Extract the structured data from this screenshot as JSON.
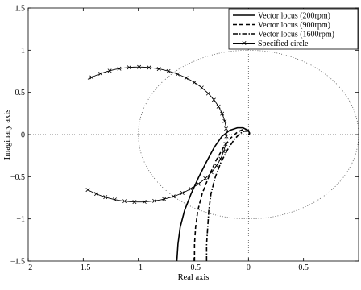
{
  "chart_data": {
    "type": "line",
    "title": "",
    "xlabel": "Real axis",
    "ylabel": "Imaginary axis",
    "xlim": [
      -2,
      1
    ],
    "ylim": [
      -1.5,
      1.5
    ],
    "xticks": [
      -2,
      -1.5,
      -1,
      -0.5,
      0,
      0.5
    ],
    "xtick_labels": [
      "−2",
      "−1.5",
      "−1",
      "−0.5",
      "0",
      "0.5"
    ],
    "yticks": [
      -1.5,
      -1,
      -0.5,
      0,
      0.5,
      1,
      1.5
    ],
    "ytick_labels": [
      "−1.5",
      "−1",
      "−0.5",
      "0",
      "0.5",
      "1",
      "1.5"
    ],
    "grid": false,
    "legend_position": "top-right",
    "reference_lines": {
      "axes_dotted": true,
      "unit_circle": {
        "center": [
          0,
          0
        ],
        "radius": 1,
        "style": "dotted"
      }
    },
    "series": [
      {
        "name": "Vector locus (200rpm)",
        "style": "solid",
        "x": [
          -0.65,
          -0.64,
          -0.62,
          -0.58,
          -0.52,
          -0.45,
          -0.38,
          -0.31,
          -0.24,
          -0.17,
          -0.1,
          -0.05,
          -0.02,
          0.0,
          0.01,
          0.01,
          0.0
        ],
        "y": [
          -1.5,
          -1.3,
          -1.1,
          -0.9,
          -0.7,
          -0.5,
          -0.32,
          -0.15,
          -0.02,
          0.05,
          0.08,
          0.08,
          0.06,
          0.04,
          0.02,
          0.01,
          0.0
        ]
      },
      {
        "name": "Vector locus (900rpm)",
        "style": "dashed",
        "x": [
          -0.49,
          -0.49,
          -0.48,
          -0.46,
          -0.42,
          -0.36,
          -0.3,
          -0.23,
          -0.16,
          -0.1,
          -0.05,
          -0.02,
          0.0,
          0.01,
          0.01,
          0.0
        ],
        "y": [
          -1.5,
          -1.3,
          -1.1,
          -0.9,
          -0.7,
          -0.5,
          -0.32,
          -0.16,
          -0.04,
          0.03,
          0.06,
          0.06,
          0.05,
          0.03,
          0.01,
          0.0
        ]
      },
      {
        "name": "Vector locus (1600rpm)",
        "style": "dashdot",
        "x": [
          -0.38,
          -0.38,
          -0.37,
          -0.36,
          -0.34,
          -0.3,
          -0.25,
          -0.19,
          -0.13,
          -0.08,
          -0.04,
          -0.01,
          0.0,
          0.01,
          0.0
        ],
        "y": [
          -1.5,
          -1.3,
          -1.1,
          -0.9,
          -0.7,
          -0.5,
          -0.33,
          -0.18,
          -0.06,
          0.01,
          0.04,
          0.04,
          0.03,
          0.01,
          0.0
        ]
      },
      {
        "name": "Specified circle",
        "style": "solid-x-markers",
        "circle": {
          "center": [
            -1.0,
            0.0
          ],
          "radius": 0.8,
          "visible_arc_degrees": [
            -125,
            125
          ]
        }
      }
    ]
  }
}
